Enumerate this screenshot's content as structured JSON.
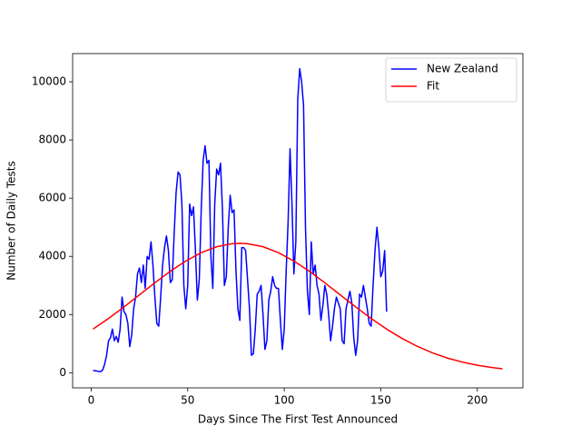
{
  "chart_data": {
    "type": "line",
    "xlabel": "Days Since The First Test Announced",
    "ylabel": "Number of Daily Tests",
    "xlim": [
      -9.6,
      223.6
    ],
    "ylim": [
      -520,
      10970
    ],
    "xticks": [
      0,
      50,
      100,
      150,
      200
    ],
    "yticks": [
      0,
      2000,
      4000,
      6000,
      8000,
      10000
    ],
    "legend": "upper right",
    "series": [
      {
        "name": "New Zealand",
        "color": "#0000ff",
        "x": [
          1,
          2,
          3,
          4,
          5,
          6,
          7,
          8,
          9,
          10,
          11,
          12,
          13,
          14,
          15,
          16,
          17,
          18,
          19,
          20,
          21,
          22,
          23,
          24,
          25,
          26,
          27,
          28,
          29,
          30,
          31,
          32,
          33,
          34,
          35,
          36,
          37,
          38,
          39,
          40,
          41,
          42,
          43,
          44,
          45,
          46,
          47,
          48,
          49,
          50,
          51,
          52,
          53,
          54,
          55,
          56,
          57,
          58,
          59,
          60,
          61,
          62,
          63,
          64,
          65,
          66,
          67,
          68,
          69,
          70,
          71,
          72,
          73,
          74,
          75,
          76,
          77,
          78,
          79,
          80,
          81,
          82,
          83,
          84,
          85,
          86,
          87,
          88,
          89,
          90,
          91,
          92,
          93,
          94,
          95,
          96,
          97,
          98,
          99,
          100,
          101,
          102,
          103,
          104,
          105,
          106,
          107,
          108,
          109,
          110,
          111,
          112,
          113,
          114,
          115,
          116,
          117,
          118,
          119,
          120,
          121,
          122,
          123,
          124,
          125,
          126,
          127,
          128,
          129,
          130,
          131,
          132,
          133,
          134,
          135,
          136,
          137,
          138,
          139,
          140,
          141,
          142,
          143,
          144,
          145,
          146,
          147,
          148,
          149,
          150,
          151,
          152,
          153
        ],
        "values": [
          80,
          70,
          60,
          40,
          40,
          100,
          300,
          600,
          1100,
          1200,
          1500,
          1100,
          1250,
          1050,
          1500,
          2600,
          2100,
          2000,
          1700,
          900,
          1300,
          2200,
          2600,
          3400,
          3600,
          3100,
          3700,
          2900,
          4000,
          3900,
          4500,
          3700,
          2600,
          1700,
          1600,
          2600,
          3700,
          4300,
          4700,
          4200,
          3100,
          3200,
          4800,
          6200,
          6900,
          6800,
          5800,
          3000,
          2200,
          3000,
          5800,
          5400,
          5700,
          4200,
          2500,
          3200,
          5600,
          7300,
          7800,
          7200,
          7300,
          4000,
          2900,
          5800,
          7000,
          6800,
          7200,
          5600,
          3000,
          3300,
          5000,
          6100,
          5500,
          5600,
          3500,
          2200,
          1800,
          4300,
          4300,
          4200,
          3200,
          2200,
          600,
          650,
          1500,
          2700,
          2800,
          3000,
          2000,
          800,
          1100,
          2500,
          2800,
          3300,
          3000,
          2900,
          2900,
          1800,
          800,
          1500,
          3500,
          5200,
          7700,
          5800,
          3400,
          4500,
          9400,
          10450,
          10000,
          9200,
          5000,
          2800,
          2000,
          4500,
          3400,
          3700,
          3000,
          2700,
          1800,
          2300,
          3000,
          2700,
          2000,
          1100,
          1600,
          2200,
          2600,
          2400,
          2200,
          1100,
          1000,
          2200,
          2500,
          2800,
          2400,
          1200,
          600,
          1100,
          2700,
          2600,
          3000,
          2600,
          2200,
          1700,
          1600,
          3000,
          4200,
          5000,
          4300,
          3300,
          3500,
          4200,
          2100
        ]
      },
      {
        "name": "Fit",
        "color": "#ff0000",
        "x": [
          1,
          9,
          17,
          25,
          33,
          41,
          49,
          57,
          65,
          73,
          77,
          81,
          89,
          97,
          105,
          113,
          121,
          129,
          137,
          145,
          153,
          161,
          169,
          177,
          185,
          193,
          201,
          209,
          213
        ],
        "values": [
          1500,
          1865,
          2261,
          2676,
          3092,
          3488,
          3840,
          4127,
          4331,
          4437,
          4450,
          4437,
          4331,
          4127,
          3840,
          3488,
          3092,
          2676,
          2261,
          1865,
          1500,
          1180,
          905,
          677,
          495,
          354,
          246,
          168,
          137
        ]
      }
    ]
  }
}
